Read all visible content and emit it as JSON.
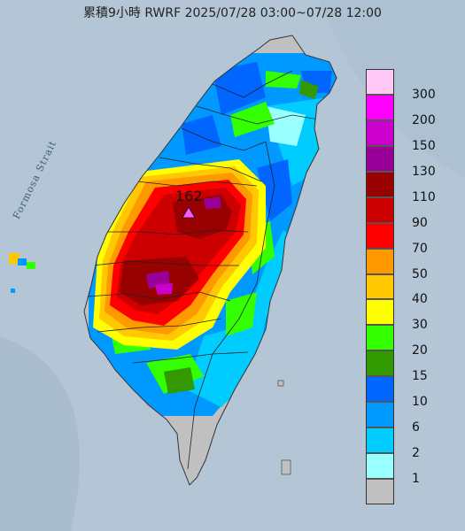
{
  "title": "累積9小時 RWRF 2025/07/28 03:00~07/28 12:00",
  "strait_label": "Formosa Strait",
  "max_marker": {
    "value": "162"
  },
  "legend": [
    {
      "label": "300",
      "color": "#ffc8f5"
    },
    {
      "label": "200",
      "color": "#ff00ff"
    },
    {
      "label": "150",
      "color": "#cc00cc"
    },
    {
      "label": "130",
      "color": "#990099"
    },
    {
      "label": "110",
      "color": "#990000"
    },
    {
      "label": "90",
      "color": "#cc0000"
    },
    {
      "label": "70",
      "color": "#ff0000"
    },
    {
      "label": "50",
      "color": "#ff9900"
    },
    {
      "label": "40",
      "color": "#ffc800"
    },
    {
      "label": "30",
      "color": "#ffff00"
    },
    {
      "label": "20",
      "color": "#33ff00"
    },
    {
      "label": "15",
      "color": "#339900"
    },
    {
      "label": "10",
      "color": "#0066ff"
    },
    {
      "label": "6",
      "color": "#0099ff"
    },
    {
      "label": "2",
      "color": "#00ccff"
    },
    {
      "label": "1",
      "color": "#99ffff"
    },
    {
      "label": "",
      "color": "#c0c0c0"
    }
  ]
}
